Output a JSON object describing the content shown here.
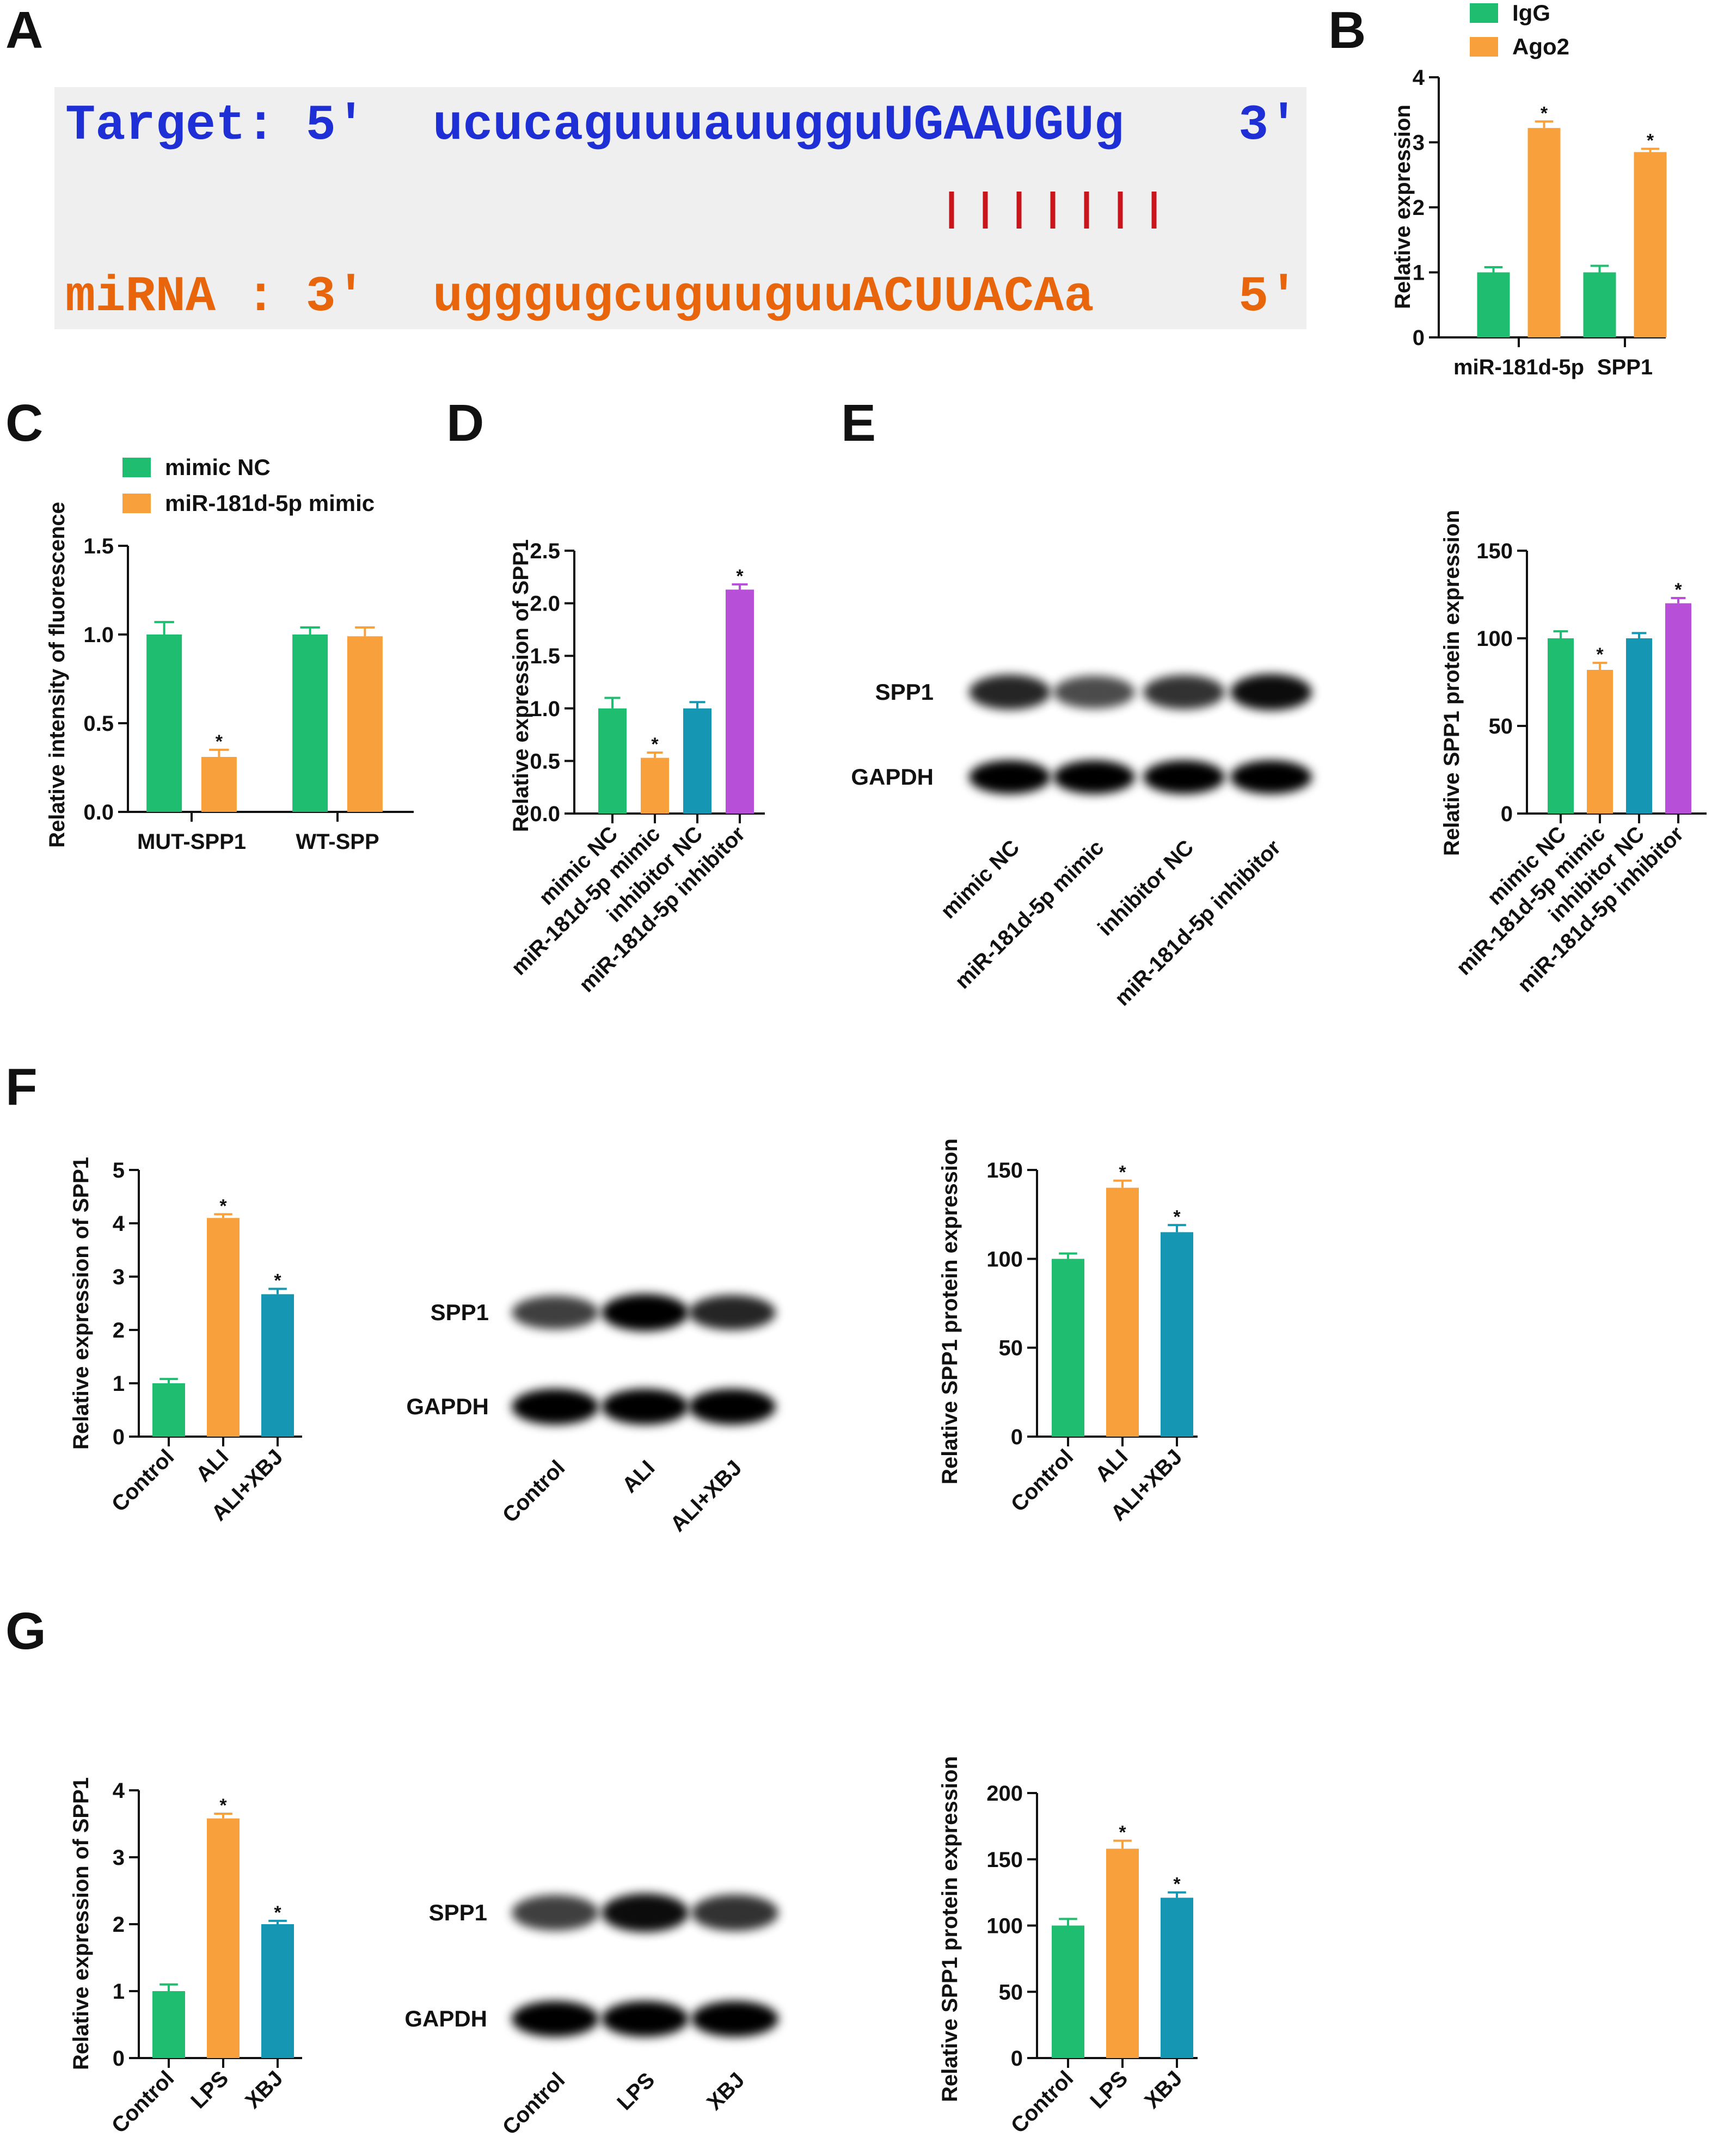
{
  "panels": {
    "A": "A",
    "B": "B",
    "C": "C",
    "D": "D",
    "E": "E",
    "F": "F",
    "G": "G"
  },
  "alignment": {
    "target_label": "Target: 5'",
    "target_seq": "ucucaguuuauugguUGAAUGUg",
    "target_end": "3'",
    "mirna_label": "miRNA : 3'",
    "mirna_seq": "ugggugcuguuguuACUUACAa",
    "mirna_end": "5'",
    "pair_lines": 7,
    "colors": {
      "target": "#1e2fd6",
      "mirna": "#e8650c",
      "pair": "#c8141a",
      "box": "#efefef"
    }
  },
  "colors": {
    "green": "#1fbd6f",
    "orange": "#f8a03c",
    "teal": "#1596b3",
    "purple": "#b84fd8"
  },
  "blots": {
    "E": {
      "rows": [
        "SPP1",
        "GAPDH"
      ],
      "lanes": [
        "mimic NC",
        "miR-181d-5p mimic",
        "inhibitor NC",
        "miR-181d-5p inhibitor"
      ],
      "spp1_intensity": [
        0.85,
        0.7,
        0.8,
        0.95
      ]
    },
    "F": {
      "rows": [
        "SPP1",
        "GAPDH"
      ],
      "lanes": [
        "Control",
        "ALI",
        "ALI+XBJ"
      ],
      "spp1_intensity": [
        0.75,
        1.0,
        0.85
      ]
    },
    "G": {
      "rows": [
        "SPP1",
        "GAPDH"
      ],
      "lanes": [
        "Control",
        "LPS",
        "XBJ"
      ],
      "spp1_intensity": [
        0.75,
        0.95,
        0.8
      ]
    }
  },
  "chart_data": [
    {
      "id": "B",
      "type": "bar",
      "categories": [
        "miR-181d-5p",
        "SPP1"
      ],
      "series": [
        {
          "name": "IgG",
          "values": [
            1.0,
            1.0
          ],
          "errors": [
            0.08,
            0.1
          ],
          "color": "#1fbd6f",
          "stars": [
            false,
            false
          ]
        },
        {
          "name": "Ago2",
          "values": [
            3.22,
            2.85
          ],
          "errors": [
            0.1,
            0.05
          ],
          "color": "#f8a03c",
          "stars": [
            true,
            true
          ]
        }
      ],
      "ylabel": "Relative expression",
      "ylim": [
        0,
        4
      ],
      "yticks": [
        "0",
        "1",
        "2",
        "3",
        "4"
      ],
      "legend": "top-left"
    },
    {
      "id": "C",
      "type": "bar",
      "categories": [
        "MUT-SPP1",
        "WT-SPP"
      ],
      "series": [
        {
          "name": "mimic NC",
          "values": [
            1.0,
            1.0
          ],
          "errors": [
            0.07,
            0.04
          ],
          "color": "#1fbd6f",
          "stars": [
            false,
            false
          ]
        },
        {
          "name": "miR-181d-5p mimic",
          "values": [
            0.31,
            0.99
          ],
          "errors": [
            0.04,
            0.05
          ],
          "color": "#f8a03c",
          "stars": [
            true,
            false
          ]
        }
      ],
      "ylabel": "Relative intensity of fluorescence",
      "ylim": [
        0,
        1.5
      ],
      "yticks": [
        "0.0",
        "0.5",
        "1.0",
        "1.5"
      ],
      "legend": "top-left"
    },
    {
      "id": "D",
      "type": "bar",
      "categories": [
        "mimic NC",
        "miR-181d-5p mimic",
        "inhibitor NC",
        "miR-181d-5p inhibitor"
      ],
      "values": [
        1.0,
        0.53,
        1.0,
        2.13
      ],
      "errors": [
        0.1,
        0.05,
        0.06,
        0.05
      ],
      "colors": [
        "#1fbd6f",
        "#f8a03c",
        "#1596b3",
        "#b84fd8"
      ],
      "stars": [
        false,
        true,
        false,
        true
      ],
      "ylabel": "Relative expression of SPP1",
      "ylim": [
        0,
        2.5
      ],
      "yticks": [
        "0.0",
        "0.5",
        "1.0",
        "1.5",
        "2.0",
        "2.5"
      ]
    },
    {
      "id": "E",
      "type": "bar",
      "categories": [
        "mimic NC",
        "miR-181d-5p mimic",
        "inhibitor NC",
        "miR-181d-5p inhibitor"
      ],
      "values": [
        100,
        82,
        100,
        120
      ],
      "errors": [
        4,
        4,
        3,
        3
      ],
      "colors": [
        "#1fbd6f",
        "#f8a03c",
        "#1596b3",
        "#b84fd8"
      ],
      "stars": [
        false,
        true,
        false,
        true
      ],
      "ylabel": "Relative SPP1 protein expression",
      "ylim": [
        0,
        150
      ],
      "yticks": [
        "0",
        "50",
        "100",
        "150"
      ]
    },
    {
      "id": "F1",
      "type": "bar",
      "categories": [
        "Control",
        "ALI",
        "ALI+XBJ"
      ],
      "values": [
        1.0,
        4.1,
        2.67
      ],
      "errors": [
        0.08,
        0.07,
        0.1
      ],
      "colors": [
        "#1fbd6f",
        "#f8a03c",
        "#1596b3"
      ],
      "stars": [
        false,
        true,
        true
      ],
      "ylabel": "Relative expression of SPP1",
      "ylim": [
        0,
        5
      ],
      "yticks": [
        "0",
        "1",
        "2",
        "3",
        "4",
        "5"
      ]
    },
    {
      "id": "F2",
      "type": "bar",
      "categories": [
        "Control",
        "ALI",
        "ALI+XBJ"
      ],
      "values": [
        100,
        140,
        115
      ],
      "errors": [
        3,
        4,
        4
      ],
      "colors": [
        "#1fbd6f",
        "#f8a03c",
        "#1596b3"
      ],
      "stars": [
        false,
        true,
        true
      ],
      "ylabel": "Relative SPP1 protein expression",
      "ylim": [
        0,
        150
      ],
      "yticks": [
        "0",
        "50",
        "100",
        "150"
      ]
    },
    {
      "id": "G1",
      "type": "bar",
      "categories": [
        "Control",
        "LPS",
        "XBJ"
      ],
      "values": [
        1.0,
        3.58,
        2.0
      ],
      "errors": [
        0.1,
        0.07,
        0.05
      ],
      "colors": [
        "#1fbd6f",
        "#f8a03c",
        "#1596b3"
      ],
      "stars": [
        false,
        true,
        true
      ],
      "ylabel": "Relative expression of SPP1",
      "ylim": [
        0,
        4
      ],
      "yticks": [
        "0",
        "1",
        "2",
        "3",
        "4"
      ]
    },
    {
      "id": "G2",
      "type": "bar",
      "categories": [
        "Control",
        "LPS",
        "XBJ"
      ],
      "values": [
        100,
        158,
        121
      ],
      "errors": [
        5,
        6,
        4
      ],
      "colors": [
        "#1fbd6f",
        "#f8a03c",
        "#1596b3"
      ],
      "stars": [
        false,
        true,
        true
      ],
      "ylabel": "Relative SPP1 protein expression",
      "ylim": [
        0,
        200
      ],
      "yticks": [
        "0",
        "50",
        "100",
        "150",
        "200"
      ]
    }
  ]
}
